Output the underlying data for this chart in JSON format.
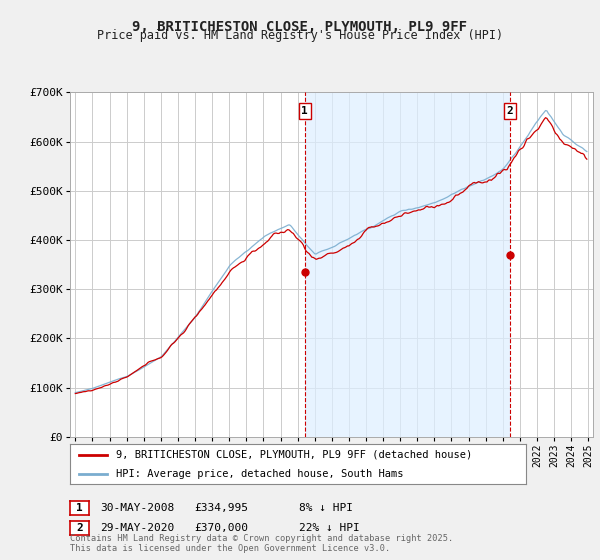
{
  "title": "9, BRITICHESTON CLOSE, PLYMOUTH, PL9 9FF",
  "subtitle": "Price paid vs. HM Land Registry's House Price Index (HPI)",
  "legend_line1": "9, BRITICHESTON CLOSE, PLYMOUTH, PL9 9FF (detached house)",
  "legend_line2": "HPI: Average price, detached house, South Hams",
  "annotation1_date": "30-MAY-2008",
  "annotation1_price": "£334,995",
  "annotation1_hpi": "8% ↓ HPI",
  "annotation2_date": "29-MAY-2020",
  "annotation2_price": "£370,000",
  "annotation2_hpi": "22% ↓ HPI",
  "footer": "Contains HM Land Registry data © Crown copyright and database right 2025.\nThis data is licensed under the Open Government Licence v3.0.",
  "line_color_red": "#cc0000",
  "line_color_blue": "#7aadcf",
  "shade_color": "#ddeeff",
  "bg_color": "#f0f0f0",
  "plot_bg_color": "#ffffff",
  "grid_color": "#cccccc",
  "marker1_year": 2008.42,
  "marker2_year": 2020.42,
  "ylim_min": 0,
  "ylim_max": 700000,
  "yticks": [
    0,
    100000,
    200000,
    300000,
    400000,
    500000,
    600000,
    700000
  ],
  "ytick_labels": [
    "£0",
    "£100K",
    "£200K",
    "£300K",
    "£400K",
    "£500K",
    "£600K",
    "£700K"
  ],
  "xmin": 1994.7,
  "xmax": 2025.3
}
